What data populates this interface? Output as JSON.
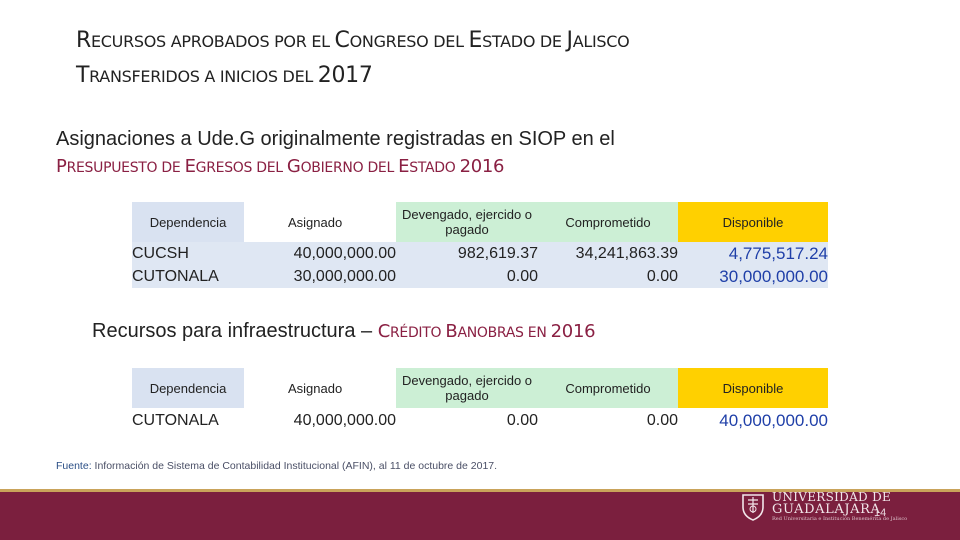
{
  "title": {
    "line1": [
      {
        "text": "R",
        "cls": "cap"
      },
      {
        "text": "ECURSOS APROBADOS POR EL ",
        "cls": "sc"
      },
      {
        "text": "C",
        "cls": "cap"
      },
      {
        "text": "ONGRESO DEL ",
        "cls": "sc"
      },
      {
        "text": "E",
        "cls": "cap"
      },
      {
        "text": "STADO DE ",
        "cls": "sc"
      },
      {
        "text": "J",
        "cls": "cap"
      },
      {
        "text": "ALISCO",
        "cls": "sc"
      }
    ],
    "line2": [
      {
        "text": "T",
        "cls": "cap"
      },
      {
        "text": "RANSFERIDOS A INICIOS DEL ",
        "cls": "sc"
      },
      {
        "text": "2017",
        "cls": "cap"
      }
    ]
  },
  "subtitle": "Asignaciones a Ude.G originalmente registradas en SIOP en el",
  "subtitle2": [
    {
      "text": "P",
      "cls": "cap"
    },
    {
      "text": "RESUPUESTO DE ",
      "cls": "sc"
    },
    {
      "text": "E",
      "cls": "cap"
    },
    {
      "text": "GRESOS DEL ",
      "cls": "sc"
    },
    {
      "text": "G",
      "cls": "cap"
    },
    {
      "text": "OBIERNO DEL ",
      "cls": "sc"
    },
    {
      "text": "E",
      "cls": "cap"
    },
    {
      "text": "STADO ",
      "cls": "sc"
    },
    {
      "text": "2016",
      "cls": "cap"
    }
  ],
  "section2": {
    "plain": "Recursos para infraestructura – ",
    "accent": [
      {
        "text": "C",
        "cls": "cap"
      },
      {
        "text": "RÉDITO ",
        "cls": "sc"
      },
      {
        "text": "B",
        "cls": "cap"
      },
      {
        "text": "ANOBRAS EN ",
        "cls": "sc"
      },
      {
        "text": "2016",
        "cls": "cap"
      }
    ]
  },
  "headers": {
    "dependencia": "Dependencia",
    "asignado": "Asignado",
    "devengado": "Devengado, ejercido o pagado",
    "comprometido": "Comprometido",
    "disponible": "Disponible"
  },
  "table1": [
    {
      "dep": "CUCSH",
      "asig": "40,000,000.00",
      "dev": "982,619.37",
      "comp": "34,241,863.39",
      "disp": "4,775,517.24"
    },
    {
      "dep": "CUTONALA",
      "asig": "30,000,000.00",
      "dev": "0.00",
      "comp": "0.00",
      "disp": "30,000,000.00"
    }
  ],
  "table2": [
    {
      "dep": "CUTONALA",
      "asig": "40,000,000.00",
      "dev": "0.00",
      "comp": "0.00",
      "disp": "40,000,000.00"
    }
  ],
  "source": {
    "label": "Fuente:",
    "text": " Información de Sistema de Contabilidad Institucional (AFIN), al 11 de octubre de 2017."
  },
  "logo": {
    "line1": "UNIVERSIDAD DE",
    "line2": "GUADALAJARA",
    "line3": "Red Universitaria e Institución Benemérita de Jalisco"
  },
  "page_number": "14",
  "colors": {
    "accent": "#8a2043",
    "footer": "#7b1f3e",
    "disponible": "#ffd000",
    "green_header": "#ccefd5",
    "blue_header": "#d9e2f1",
    "disp_text": "#1f3fa8"
  }
}
